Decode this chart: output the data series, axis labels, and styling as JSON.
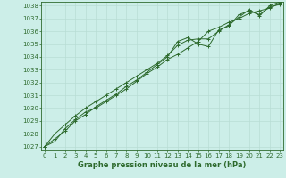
{
  "title": "Graphe pression niveau de la mer (hPa)",
  "background_color": "#cceee8",
  "grid_color": "#b8ddd5",
  "line_color": "#2d6a2d",
  "marker": "+",
  "x_min": 0,
  "x_max": 23,
  "y_min": 1027,
  "y_max": 1038,
  "series": [
    [
      1027.0,
      1027.6,
      1028.2,
      1029.0,
      1029.5,
      1030.1,
      1030.6,
      1031.1,
      1031.7,
      1032.2,
      1032.8,
      1033.4,
      1034.0,
      1035.2,
      1035.5,
      1035.0,
      1034.8,
      1036.1,
      1036.4,
      1037.3,
      1037.6,
      1037.3,
      1037.9,
      1038.1
    ],
    [
      1027.0,
      1027.4,
      1028.4,
      1029.1,
      1029.7,
      1030.0,
      1030.5,
      1031.0,
      1031.5,
      1032.1,
      1032.7,
      1033.2,
      1033.8,
      1034.2,
      1034.7,
      1035.2,
      1036.0,
      1036.3,
      1036.7,
      1037.0,
      1037.4,
      1037.6,
      1037.8,
      1038.2
    ],
    [
      1027.0,
      1028.0,
      1028.7,
      1029.4,
      1030.0,
      1030.5,
      1031.0,
      1031.5,
      1032.0,
      1032.5,
      1033.0,
      1033.5,
      1034.1,
      1034.9,
      1035.3,
      1035.4,
      1035.4,
      1036.0,
      1036.5,
      1037.1,
      1037.7,
      1037.2,
      1038.0,
      1038.3
    ]
  ],
  "tick_fontsize": 5,
  "title_fontsize": 6,
  "linewidth": 0.7,
  "markersize": 3.5,
  "markeredgewidth": 0.7
}
